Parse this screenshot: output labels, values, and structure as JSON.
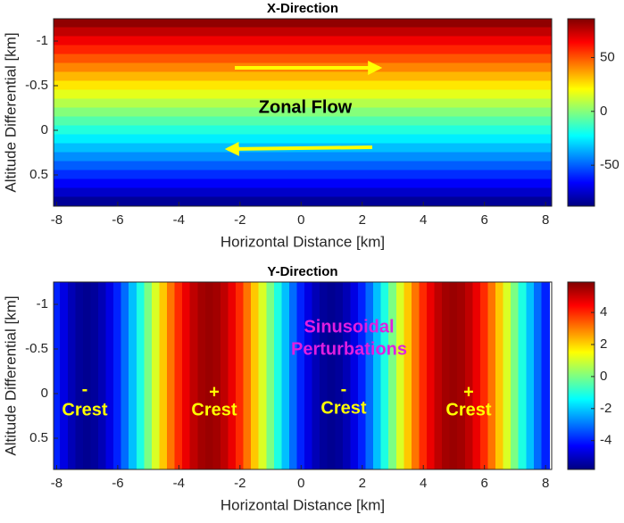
{
  "chart_data": [
    {
      "type": "heatmap",
      "title": "X-Direction",
      "xlabel": "Horizontal Distance [km]",
      "ylabel": "Altitude Differential [km]",
      "xlim": [
        -8.1,
        8.2
      ],
      "xticks": [
        -8,
        -6,
        -4,
        -2,
        0,
        2,
        4,
        6,
        8
      ],
      "ylim": [
        -1.25,
        0.85
      ],
      "yticks": [
        -1,
        -0.5,
        0,
        0.5
      ],
      "y_reversed": true,
      "y": [
        -1.2,
        -1.1,
        -1.0,
        -0.9,
        -0.8,
        -0.7,
        -0.6,
        -0.5,
        -0.4,
        -0.3,
        -0.2,
        -0.1,
        0,
        0.1,
        0.2,
        0.3,
        0.4,
        0.5,
        0.6,
        0.7,
        0.8
      ],
      "values": [
        83.2,
        74.9,
        66.5,
        58.2,
        49.8,
        41.5,
        33.1,
        24.8,
        16.4,
        8.1,
        -0.3,
        -8.7,
        -17,
        -25.4,
        -33.7,
        -42.1,
        -50.4,
        -58.8,
        -67.1,
        -75.5,
        -83.8
      ],
      "clim": [
        -88,
        86
      ],
      "cticks": [
        -50,
        0,
        50
      ],
      "colormap": "jet",
      "annotations": [
        "Zonal Flow"
      ]
    },
    {
      "type": "heatmap",
      "title": "Y-Direction",
      "xlabel": "Horizontal Distance [km]",
      "ylabel": "Altitude Differential [km]",
      "xlim": [
        -8.1,
        8.2
      ],
      "xticks": [
        -8,
        -6,
        -4,
        -2,
        0,
        2,
        4,
        6,
        8
      ],
      "ylim": [
        -1.25,
        0.85
      ],
      "yticks": [
        -1,
        -0.5,
        0,
        0.5
      ],
      "y_reversed": true,
      "x": [
        -8,
        -7.75,
        -7.5,
        -7.25,
        -7,
        -6.75,
        -6.5,
        -6.25,
        -6,
        -5.75,
        -5.5,
        -5.25,
        -5,
        -4.75,
        -4.5,
        -4.25,
        -4,
        -3.75,
        -3.5,
        -3.25,
        -3,
        -2.75,
        -2.5,
        -2.25,
        -2,
        -1.75,
        -1.5,
        -1.25,
        -1,
        -0.75,
        -0.5,
        -0.25,
        0,
        0.25,
        0.5,
        0.75,
        1,
        1.25,
        1.5,
        1.75,
        2,
        2.25,
        2.5,
        2.75,
        3,
        3.25,
        3.5,
        3.75,
        4,
        4.25,
        4.5,
        4.75,
        5,
        5.25,
        5.5,
        5.75,
        6,
        6.25,
        6.5,
        6.75,
        7,
        7.25,
        7.5,
        7.75,
        8
      ],
      "values": [
        -3.96,
        -4.66,
        -5.17,
        -5.49,
        -5.6,
        -5.49,
        -5.17,
        -4.66,
        -3.96,
        -3.11,
        -2.14,
        -1.09,
        0,
        1.09,
        2.14,
        3.11,
        3.96,
        4.66,
        5.17,
        5.49,
        5.6,
        5.49,
        5.17,
        4.66,
        3.96,
        3.11,
        2.14,
        1.09,
        0,
        -1.09,
        -2.14,
        -3.11,
        -3.96,
        -4.66,
        -5.17,
        -5.49,
        -5.6,
        -5.49,
        -5.17,
        -4.66,
        -3.96,
        -3.11,
        -2.14,
        -1.09,
        0,
        1.09,
        2.14,
        3.11,
        3.96,
        4.66,
        5.17,
        5.49,
        5.6,
        5.49,
        5.17,
        4.66,
        3.96,
        3.11,
        2.14,
        1.09,
        0,
        -1.09,
        -2.14,
        -3.11,
        -3.96
      ],
      "clim": [
        -5.8,
        5.9
      ],
      "cticks": [
        -4,
        -2,
        0,
        2,
        4
      ],
      "colormap": "jet",
      "annotations": [
        "Sinusoidal",
        "Perturbations",
        "-",
        "Crest",
        "+",
        "Crest",
        "-",
        "Crest",
        "+",
        "Crest"
      ]
    }
  ]
}
